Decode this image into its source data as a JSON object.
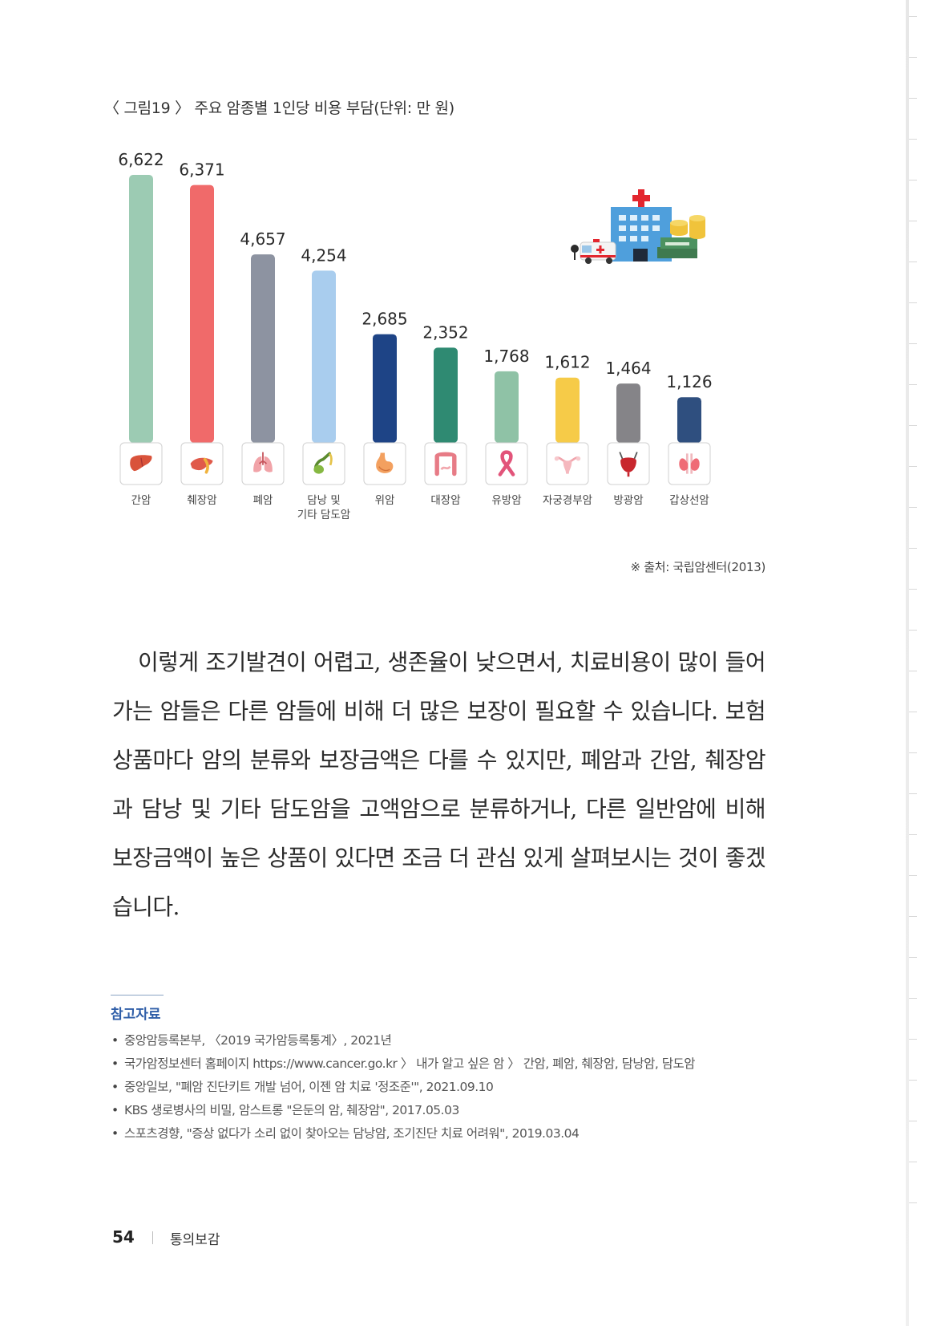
{
  "figure": {
    "title": "〈 그림19 〉 주요 암종별 1인당 비용 부담(단위: 만 원)",
    "source": "※ 출처: 국립암센터(2013)"
  },
  "chart_data": {
    "type": "bar",
    "title": "〈 그림19 〉 주요 암종별 1인당 비용 부담(단위: 만 원)",
    "xlabel": "",
    "ylabel": "",
    "ylim": [
      0,
      6622
    ],
    "grid": false,
    "legend": "none",
    "categories": [
      {
        "label": "간암",
        "label2": "",
        "icon": "liver-icon"
      },
      {
        "label": "췌장암",
        "label2": "",
        "icon": "pancreas-icon"
      },
      {
        "label": "폐암",
        "label2": "",
        "icon": "lungs-icon"
      },
      {
        "label": "담낭 및",
        "label2": "기타 담도암",
        "icon": "gallbladder-icon"
      },
      {
        "label": "위암",
        "label2": "",
        "icon": "stomach-icon"
      },
      {
        "label": "대장암",
        "label2": "",
        "icon": "intestine-icon"
      },
      {
        "label": "유방암",
        "label2": "",
        "icon": "ribbon-icon"
      },
      {
        "label": "자궁경부암",
        "label2": "",
        "icon": "uterus-icon"
      },
      {
        "label": "방광암",
        "label2": "",
        "icon": "bladder-icon"
      },
      {
        "label": "갑상선암",
        "label2": "",
        "icon": "thyroid-icon"
      }
    ],
    "values": [
      6622,
      6371,
      4657,
      4254,
      2685,
      2352,
      1768,
      1612,
      1464,
      1126
    ],
    "value_labels": [
      "6,622",
      "6,371",
      "4,657",
      "4,254",
      "2,685",
      "2,352",
      "1,768",
      "1,612",
      "1,464",
      "1,126"
    ],
    "colors": [
      "#9ccbb3",
      "#f06a6a",
      "#8d93a1",
      "#a9cdee",
      "#1e4486",
      "#2f8a72",
      "#8fc2a6",
      "#f6cb48",
      "#858488",
      "#2f4f7f"
    ]
  },
  "illustration": {
    "hospital_icon": "hospital-icon",
    "ambulance_icon": "ambulance-icon",
    "money_icon": "money-stack-icon",
    "colors": {
      "cross": "#e3262e",
      "building": "#4f9fdc",
      "coins": "#f0c33b",
      "cash": "#3f7a4f"
    }
  },
  "body": {
    "paragraph": "이렇게 조기발견이 어렵고, 생존율이 낮으면서, 치료비용이 많이 들어가는 암들은 다른 암들에 비해 더 많은 보장이 필요할 수 있습니다. 보험 상품마다 암의 분류와 보장금액은 다를 수 있지만, 폐암과 간암, 췌장암과 담낭 및 기타 담도암을 고액암으로 분류하거나, 다른 일반암에 비해 보장금액이 높은 상품이 있다면 조금 더 관심 있게 살펴보시는 것이 좋겠습니다."
  },
  "references": {
    "title": "참고자료",
    "items": [
      "중앙암등록본부, 〈2019 국가암등록통계〉, 2021년",
      "국가암정보센터 홈페이지 https://www.cancer.go.kr 〉 내가 알고 싶은 암 〉 간암, 폐암, 췌장암, 담낭암, 담도암",
      "중앙일보, \"폐암 진단키트 개발 넘어, 이젠 암 치료 '정조준'\", 2021.09.10",
      "KBS 생로병사의 비밀, 암스트롱 \"은둔의 암, 췌장암\", 2017.05.03",
      "스포츠경향, \"증상 없다가 소리 없이 찾아오는 담낭암, 조기진단 치료 어려워\", 2019.03.04"
    ]
  },
  "footer": {
    "page_number": "54",
    "book_title": "통의보감"
  }
}
